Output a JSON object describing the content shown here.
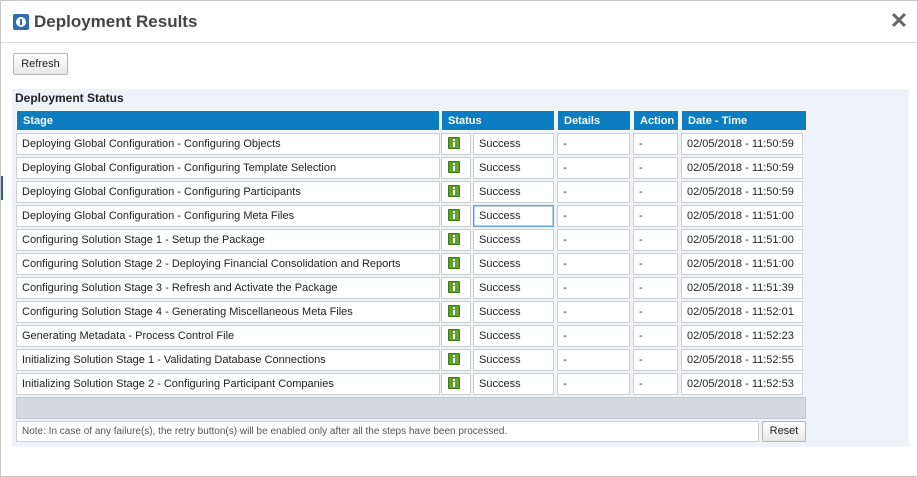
{
  "dialog": {
    "title": "Deployment Results",
    "close_symbol": "✕"
  },
  "toolbar": {
    "refresh_label": "Refresh"
  },
  "panel": {
    "header": "Deployment Status",
    "columns": [
      "Stage",
      "Status",
      "Details",
      "Action",
      "Date - Time"
    ],
    "rows": [
      {
        "stage": "Deploying Global Configuration - Configuring Objects",
        "status": "Success",
        "details": "-",
        "action": "-",
        "datetime": "02/05/2018 - 11:50:59"
      },
      {
        "stage": "Deploying Global Configuration - Configuring Template Selection",
        "status": "Success",
        "details": "-",
        "action": "-",
        "datetime": "02/05/2018 - 11:50:59"
      },
      {
        "stage": "Deploying Global Configuration - Configuring Participants",
        "status": "Success",
        "details": "-",
        "action": "-",
        "datetime": "02/05/2018 - 11:50:59"
      },
      {
        "stage": "Deploying Global Configuration - Configuring Meta Files",
        "status": "Success",
        "details": "-",
        "action": "-",
        "datetime": "02/05/2018 - 11:51:00"
      },
      {
        "stage": "Configuring Solution Stage 1 - Setup the Package",
        "status": "Success",
        "details": "-",
        "action": "-",
        "datetime": "02/05/2018 - 11:51:00"
      },
      {
        "stage": "Configuring Solution Stage 2 - Deploying Financial Consolidation and Reports",
        "status": "Success",
        "details": "-",
        "action": "-",
        "datetime": "02/05/2018 - 11:51:00"
      },
      {
        "stage": "Configuring Solution Stage 3 - Refresh and Activate the Package",
        "status": "Success",
        "details": "-",
        "action": "-",
        "datetime": "02/05/2018 - 11:51:39"
      },
      {
        "stage": "Configuring Solution Stage 4 - Generating Miscellaneous Meta Files",
        "status": "Success",
        "details": "-",
        "action": "-",
        "datetime": "02/05/2018 - 11:52:01"
      },
      {
        "stage": "Generating Metadata - Process Control File",
        "status": "Success",
        "details": "-",
        "action": "-",
        "datetime": "02/05/2018 - 11:52:23"
      },
      {
        "stage": "Initializing Solution Stage 1 - Validating Database Connections",
        "status": "Success",
        "details": "-",
        "action": "-",
        "datetime": "02/05/2018 - 11:52:55"
      },
      {
        "stage": "Initializing Solution Stage 2 - Configuring Participant Companies",
        "status": "Success",
        "details": "-",
        "action": "-",
        "datetime": "02/05/2018 - 11:52:53"
      }
    ],
    "status_icon": "success-info-icon",
    "note": "Note: In case of any failure(s), the retry button(s) will be enabled only after all the steps have been processed.",
    "reset_label": "Reset"
  },
  "colors": {
    "header_blue": "#0c7dc0",
    "panel_bg": "#edf3f9",
    "success_green": "#5fa52a"
  }
}
